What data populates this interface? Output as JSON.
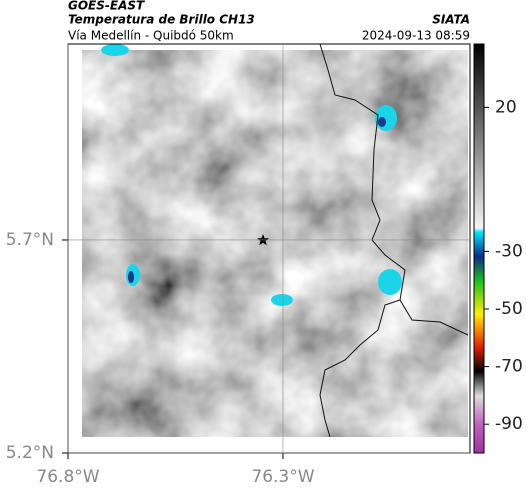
{
  "header": {
    "source": "GOES-EAST",
    "title": "Temperatura de Brillo CH13",
    "org": "SIATA",
    "subtitle": "Vía Medellín - Quibdó 50km",
    "datetime": "2024-09-13 08:59"
  },
  "map": {
    "lonlim": [
      -76.8,
      -75.865
    ],
    "latlim": [
      5.2,
      6.16
    ],
    "lon_ticks": [
      {
        "value": -76.8,
        "label": "76.8°W"
      },
      {
        "value": -76.3,
        "label": "76.3°W"
      }
    ],
    "lat_ticks": [
      {
        "value": 5.2,
        "label": "5.2°N"
      },
      {
        "value": 5.7,
        "label": "5.7°N"
      }
    ],
    "grid": true
  },
  "colorbar": {
    "lim": [
      -100,
      42
    ],
    "ticks": [
      20,
      -30,
      -50,
      -70,
      -90
    ]
  }
}
